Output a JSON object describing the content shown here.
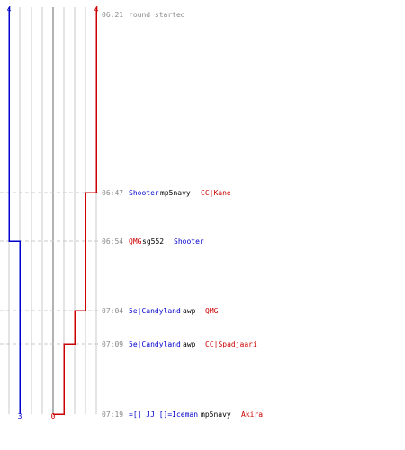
{
  "colors": {
    "team_a": "#0000cc",
    "team_b": "#cc0000",
    "grid": "#c8c8c8",
    "center": "#666666",
    "guide": "#c8c8c8",
    "time": "#888888",
    "neutral": "#000000"
  },
  "score": {
    "team_a_start": "4",
    "team_a_end": "3",
    "team_b_start": "4",
    "team_b_end": "0"
  },
  "events": [
    {
      "time": "06:21",
      "segments": [
        {
          "text": "round started",
          "team": "time"
        }
      ]
    },
    {
      "time": "06:47",
      "segments": [
        {
          "text": "Shooter",
          "team": "a"
        },
        {
          "text": " mp5navy ",
          "team": "neutral"
        },
        {
          "text": "CC|Kane",
          "team": "b"
        }
      ]
    },
    {
      "time": "06:54",
      "segments": [
        {
          "text": "QMG",
          "team": "b"
        },
        {
          "text": " sg552 ",
          "team": "neutral"
        },
        {
          "text": "Shooter",
          "team": "a"
        }
      ]
    },
    {
      "time": "07:04",
      "segments": [
        {
          "text": "5e|Candyland",
          "team": "a"
        },
        {
          "text": " awp ",
          "team": "neutral"
        },
        {
          "text": "QMG",
          "team": "b"
        }
      ]
    },
    {
      "time": "07:09",
      "segments": [
        {
          "text": "5e|Candyland",
          "team": "a"
        },
        {
          "text": " awp ",
          "team": "neutral"
        },
        {
          "text": "CC|Spadjaari",
          "team": "b"
        }
      ]
    },
    {
      "time": "07:19",
      "segments": [
        {
          "text": "=[] JJ []=Iceman",
          "team": "a"
        },
        {
          "text": " mp5navy ",
          "team": "neutral"
        },
        {
          "text": "Akira",
          "team": "b"
        }
      ]
    }
  ]
}
